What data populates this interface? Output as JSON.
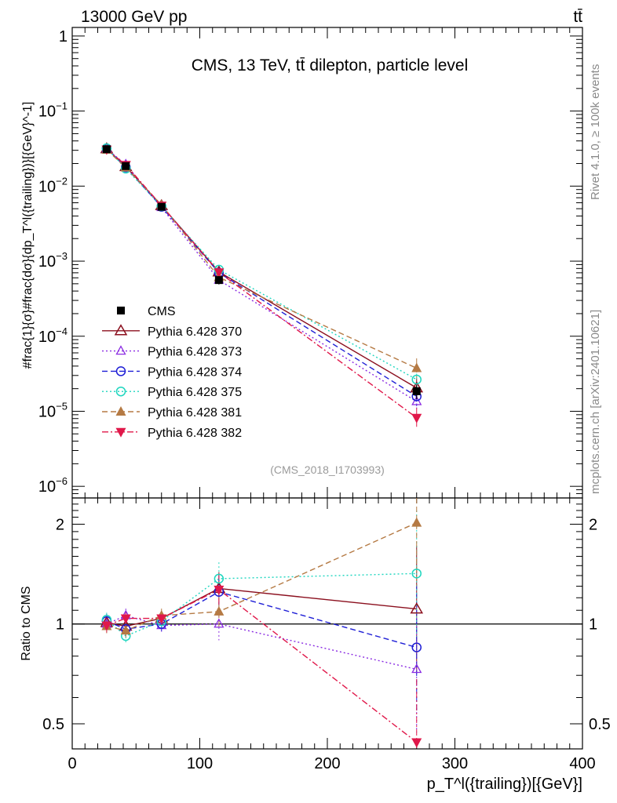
{
  "header": {
    "left": "13000 GeV pp",
    "right": "tt̄"
  },
  "side_texts": {
    "rivet": "Rivet 4.1.0, ≥ 100k events",
    "mcplots": "mcplots.cern.ch [arXiv:2401.10621]"
  },
  "chart_data": [
    {
      "type": "line",
      "panel": "main",
      "title": "CMS, 13 TeV, tt̄ dilepton, particle level",
      "watermark": "(CMS_2018_I1703993)",
      "yscale": "log",
      "xlim": [
        0,
        400
      ],
      "ylim": [
        7e-07,
        1.3
      ],
      "ytick_labels": [
        {
          "value": 1,
          "label": "1"
        },
        {
          "value": 0.1,
          "label": "10^-1"
        },
        {
          "value": 0.01,
          "label": "10^-2"
        },
        {
          "value": 0.001,
          "label": "10^-3"
        },
        {
          "value": 0.0001,
          "label": "10^-4"
        },
        {
          "value": 1e-05,
          "label": "10^-5"
        },
        {
          "value": 1e-06,
          "label": "10^-6"
        }
      ],
      "ylabel": "#frac{1}{σ}#frac{dσ}{dp_T^l({trailing})}[{GeV}^-1]",
      "x": [
        27,
        42,
        70,
        115,
        270
      ],
      "series": [
        {
          "name": "CMS",
          "color": "#000000",
          "marker": "square-filled",
          "dash": "none",
          "values": [
            0.031,
            0.0185,
            0.0053,
            0.00056,
            1.85e-05
          ],
          "errors": [
            0.0015,
            0.0009,
            0.00025,
            7e-05,
            4e-06
          ]
        },
        {
          "name": "Pythia 6.428 370",
          "color": "#8b0f1e",
          "marker": "triangle-open",
          "dash": "solid",
          "values": [
            0.0315,
            0.0182,
            0.0055,
            0.00072,
            2.05e-05
          ]
        },
        {
          "name": "Pythia 6.428 373",
          "color": "#8a2be2",
          "marker": "triangle-open-small",
          "dash": "dotted",
          "values": [
            0.0312,
            0.0195,
            0.0052,
            0.00056,
            1.35e-05
          ]
        },
        {
          "name": "Pythia 6.428 374",
          "color": "#1f1fd6",
          "marker": "circle-open",
          "dash": "dashed",
          "values": [
            0.0318,
            0.0178,
            0.0053,
            0.0007,
            1.58e-05
          ]
        },
        {
          "name": "Pythia 6.428 375",
          "color": "#1fd6bf",
          "marker": "circle-open",
          "dash": "dotted",
          "values": [
            0.032,
            0.0171,
            0.0054,
            0.00077,
            2.65e-05
          ]
        },
        {
          "name": "Pythia 6.428 381",
          "color": "#b57a44",
          "marker": "triangle-filled",
          "dash": "dashed",
          "values": [
            0.0305,
            0.0177,
            0.0056,
            0.00061,
            3.75e-05
          ]
        },
        {
          "name": "Pythia 6.428 382",
          "color": "#e0184a",
          "marker": "triangle-down-filled",
          "dash": "dashdot",
          "values": [
            0.0308,
            0.0192,
            0.0055,
            0.00071,
            8.2e-06
          ]
        }
      ]
    },
    {
      "type": "line",
      "panel": "ratio",
      "ylabel": "Ratio to CMS",
      "xlabel": "p_T^l({trailing})[{GeV}]",
      "yscale": "log",
      "xlim": [
        0,
        400
      ],
      "ylim": [
        0.42,
        2.4
      ],
      "ytick_labels": [
        {
          "value": 0.5,
          "label": "0.5"
        },
        {
          "value": 1,
          "label": "1"
        },
        {
          "value": 2,
          "label": "2"
        }
      ],
      "xtick_labels": [
        {
          "value": 0,
          "label": "0"
        },
        {
          "value": 100,
          "label": "100"
        },
        {
          "value": 200,
          "label": "200"
        },
        {
          "value": 300,
          "label": "300"
        },
        {
          "value": 400,
          "label": "400"
        }
      ],
      "x": [
        27,
        42,
        70,
        115,
        270
      ],
      "series": [
        {
          "name": "Pythia 6.428 370",
          "values": [
            1.01,
            0.985,
            1.04,
            1.28,
            1.11
          ]
        },
        {
          "name": "Pythia 6.428 373",
          "values": [
            1.0,
            1.06,
            0.99,
            1.0,
            0.73
          ]
        },
        {
          "name": "Pythia 6.428 374",
          "values": [
            1.02,
            0.965,
            1.0,
            1.25,
            0.85
          ]
        },
        {
          "name": "Pythia 6.428 375",
          "values": [
            1.03,
            0.92,
            1.02,
            1.37,
            1.42
          ]
        },
        {
          "name": "Pythia 6.428 381",
          "values": [
            0.985,
            0.955,
            1.06,
            1.09,
            2.02
          ]
        },
        {
          "name": "Pythia 6.428 382",
          "values": [
            0.99,
            1.04,
            1.04,
            1.27,
            0.44
          ]
        }
      ],
      "data_band_errors": [
        0.05,
        0.05,
        0.05,
        0.12,
        0.25
      ]
    }
  ]
}
